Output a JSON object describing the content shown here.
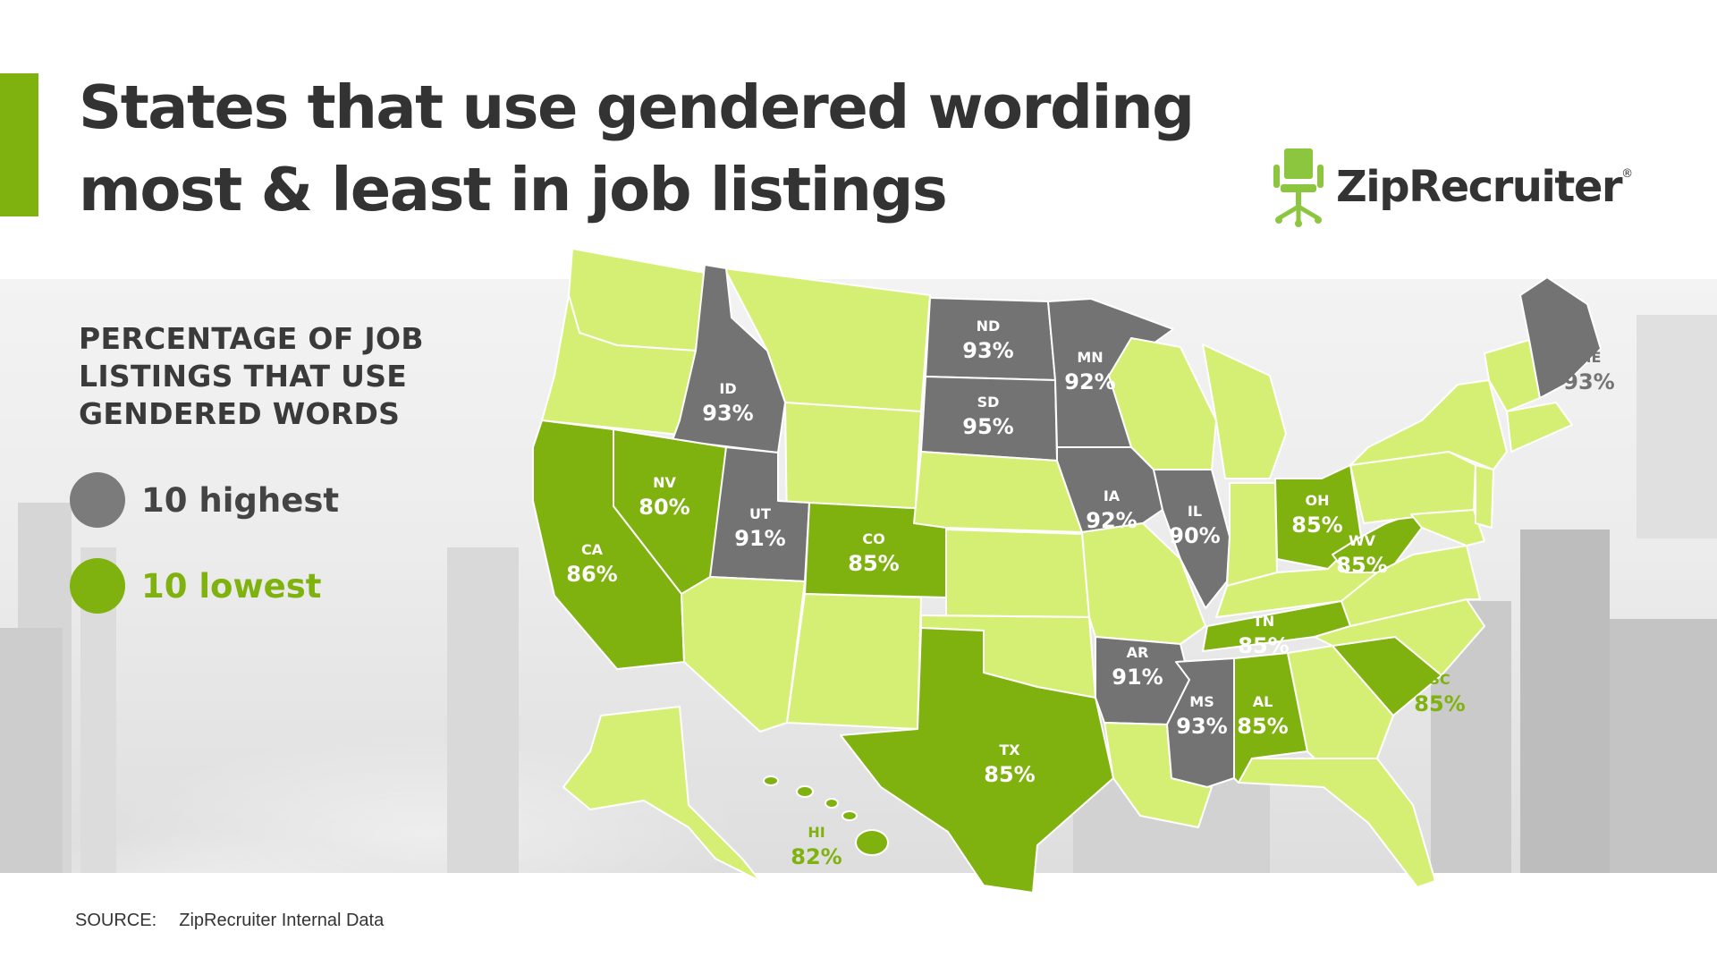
{
  "title": {
    "line1": "States that use gendered wording",
    "line2": "most & least in job listings"
  },
  "logo": {
    "name": "ZipRecruiter",
    "registered": "®"
  },
  "legend": {
    "title_line1": "PERCENTAGE OF JOB",
    "title_line2": "LISTINGS THAT USE",
    "title_line3": "GENDERED WORDS",
    "highest": {
      "label": "10 highest",
      "color": "#7b7b7b"
    },
    "lowest": {
      "label": "10 lowest",
      "color": "#7fb20f"
    }
  },
  "colors": {
    "other_states": "#d5ef75",
    "highest": "#737373",
    "lowest": "#7fb20f",
    "border": "#ffffff",
    "accent": "#7fb20f"
  },
  "states": [
    {
      "abbr": "ND",
      "value": "93%",
      "group": "highest"
    },
    {
      "abbr": "MN",
      "value": "92%",
      "group": "highest"
    },
    {
      "abbr": "ID",
      "value": "93%",
      "group": "highest"
    },
    {
      "abbr": "SD",
      "value": "95%",
      "group": "highest"
    },
    {
      "abbr": "ME",
      "value": "93%",
      "group": "highest"
    },
    {
      "abbr": "IA",
      "value": "92%",
      "group": "highest"
    },
    {
      "abbr": "NV",
      "value": "80%",
      "group": "lowest"
    },
    {
      "abbr": "UT",
      "value": "91%",
      "group": "highest"
    },
    {
      "abbr": "CO",
      "value": "85%",
      "group": "lowest"
    },
    {
      "abbr": "IL",
      "value": "90%",
      "group": "highest"
    },
    {
      "abbr": "OH",
      "value": "85%",
      "group": "lowest"
    },
    {
      "abbr": "CA",
      "value": "86%",
      "group": "lowest"
    },
    {
      "abbr": "WV",
      "value": "85%",
      "group": "lowest"
    },
    {
      "abbr": "TN",
      "value": "85%",
      "group": "lowest"
    },
    {
      "abbr": "AR",
      "value": "91%",
      "group": "highest"
    },
    {
      "abbr": "SC",
      "value": "85%",
      "group": "lowest"
    },
    {
      "abbr": "MS",
      "value": "93%",
      "group": "highest"
    },
    {
      "abbr": "AL",
      "value": "85%",
      "group": "lowest"
    },
    {
      "abbr": "TX",
      "value": "85%",
      "group": "lowest"
    },
    {
      "abbr": "HI",
      "value": "82%",
      "group": "lowest"
    }
  ],
  "source": {
    "label": "SOURCE:",
    "text": "ZipRecruiter Internal Data"
  }
}
